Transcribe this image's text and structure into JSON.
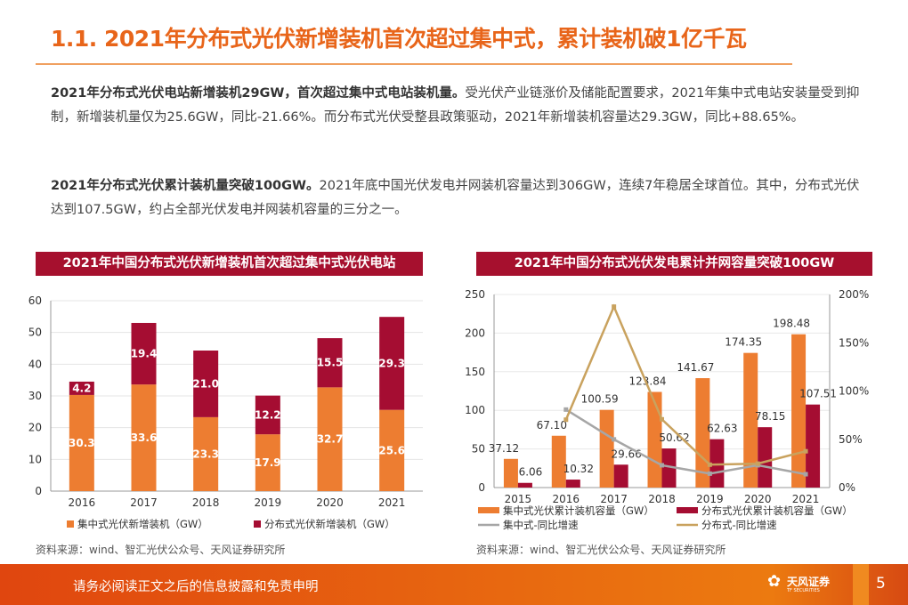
{
  "title": "1.1. 2021年分布式光伏新增装机首次超过集中式，累计装机破1亿千瓦",
  "paragraphs": [
    {
      "bold": "2021年分布式光伏电站新增装机29GW，首次超过集中式电站装机量。",
      "text": "受光伏产业链涨价及储能配置要求，2021年集中式电站安装量受到抑制，新增装机量仅为25.6GW，同比-21.66%。而分布式光伏受整县政策驱动，2021年新增装机容量达29.3GW，同比+88.65%。"
    },
    {
      "bold": "2021年分布式光伏累计装机量突破100GW。",
      "text": "2021年底中国光伏发电并网装机容量达到306GW，连续7年稳居全球首位。其中，分布式光伏达到107.5GW，约占全部光伏发电并网装机容量的三分之一。"
    }
  ],
  "chart_headers": [
    "2021年中国分布式光伏新增装机首次超过集中式光伏电站",
    "2021年中国分布式光伏发电累计并网容量突破100GW"
  ],
  "sources": [
    "资料来源：wind、智汇光伏公众号、天风证券研究所",
    "资料来源：wind、智汇光伏公众号、天风证券研究所"
  ],
  "footer": {
    "disclaimer": "请务必阅读正文之后的信息披露和免责申明",
    "logo_name": "天风证券",
    "logo_sub": "TF SECURITIES",
    "page": "5"
  },
  "colors": {
    "orange": "#ed7d31",
    "crimson": "#a50d32",
    "gray": "#a6a6a6",
    "tan": "#c9a25e",
    "accent": "#e8651a"
  },
  "chart_data": [
    {
      "type": "bar",
      "stacked": true,
      "categories": [
        "2016",
        "2017",
        "2018",
        "2019",
        "2020",
        "2021"
      ],
      "series": [
        {
          "name": "集中式光伏新增装机（GW）",
          "values": [
            30.3,
            33.6,
            23.3,
            17.9,
            32.7,
            25.6
          ]
        },
        {
          "name": "分布式光伏新增装机（GW）",
          "values": [
            4.2,
            19.4,
            21.0,
            12.2,
            15.5,
            29.3
          ]
        }
      ],
      "labels": [
        [
          "30.3",
          "33.6",
          "23.3",
          "17.9",
          "32.7",
          "25.6"
        ],
        [
          "4.2",
          "19.4",
          "21.0",
          "12.2",
          "15.5",
          "29.3"
        ]
      ],
      "ylim": [
        0,
        60
      ],
      "yticks": [
        "0",
        "10",
        "20",
        "30",
        "40",
        "50",
        "60"
      ],
      "grid": true,
      "legend": "bottom"
    },
    {
      "type": "bar+line",
      "categories": [
        "2015",
        "2016",
        "2017",
        "2018",
        "2019",
        "2020",
        "2021"
      ],
      "series": [
        {
          "name": "集中式光伏累计装机容量（GW）",
          "axis": "left",
          "values": [
            37.12,
            67.1,
            100.59,
            123.84,
            141.67,
            174.35,
            198.48
          ]
        },
        {
          "name": "分布式光伏累计装机容量（GW）",
          "axis": "left",
          "values": [
            6.06,
            10.32,
            29.66,
            50.62,
            62.63,
            78.15,
            107.51
          ]
        },
        {
          "name": "集中式-同比增速",
          "axis": "right",
          "type": "line",
          "values": [
            null,
            80.8,
            49.9,
            23.1,
            14.4,
            23.1,
            13.8
          ]
        },
        {
          "name": "分布式-同比增速",
          "axis": "right",
          "type": "line",
          "values": [
            null,
            70.3,
            187.4,
            70.7,
            23.7,
            24.8,
            37.6
          ]
        }
      ],
      "labels": [
        [
          "37.12",
          "67.10",
          "100.59",
          "123.84",
          "141.67",
          "174.35",
          "198.48"
        ],
        [
          "6.06",
          "10.32",
          "29.66",
          "50.62",
          "62.63",
          "78.15",
          "107.51"
        ]
      ],
      "ylim": [
        0,
        250
      ],
      "yticks": [
        "0",
        "50",
        "100",
        "150",
        "200",
        "250"
      ],
      "y2lim": [
        0,
        200
      ],
      "y2ticks": [
        "0%",
        "50%",
        "100%",
        "150%",
        "200%"
      ],
      "grid": true,
      "legend": "bottom"
    }
  ]
}
